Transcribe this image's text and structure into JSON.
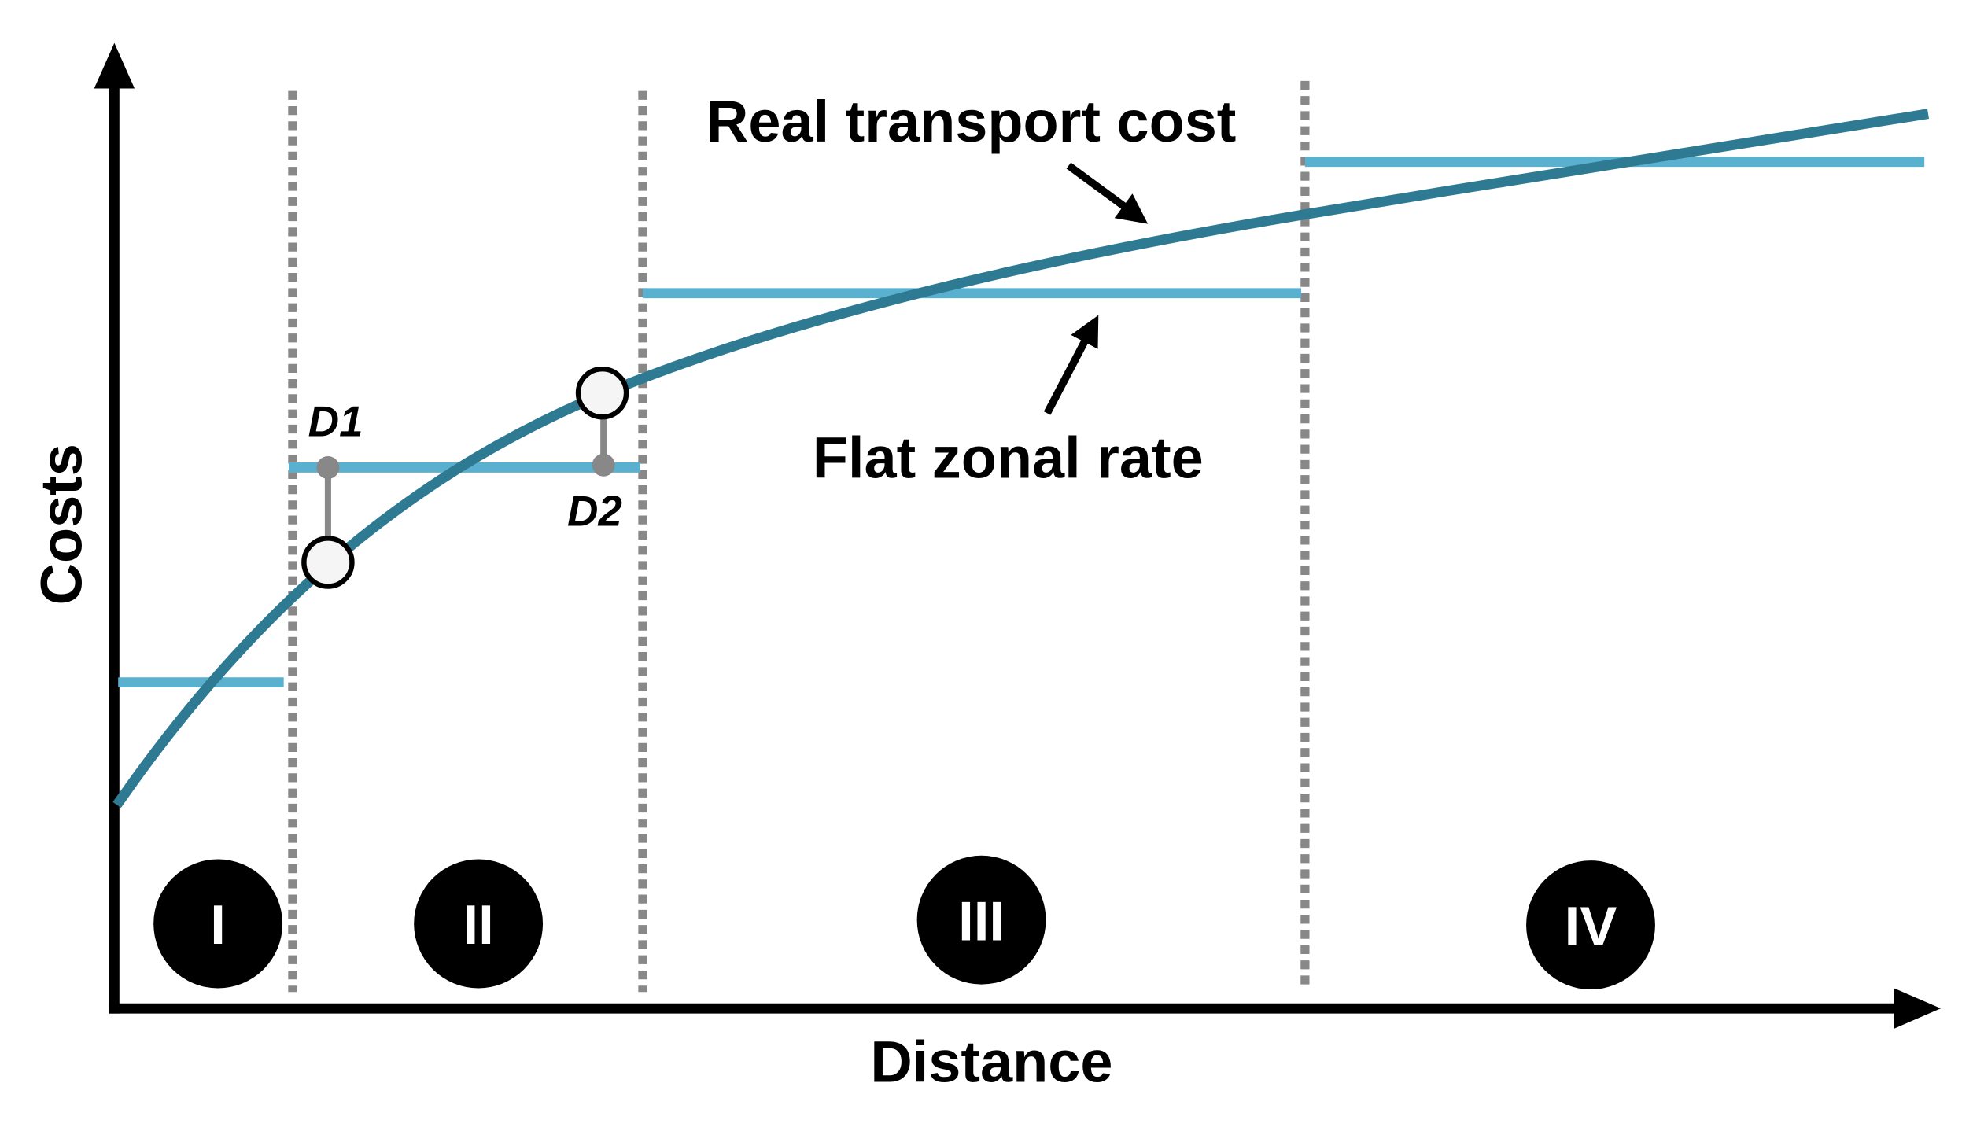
{
  "axes": {
    "y_label": "Costs",
    "x_label": "Distance"
  },
  "annotations": {
    "real_cost": "Real transport cost",
    "flat_rate": "Flat zonal rate",
    "d1": "D1",
    "d2": "D2"
  },
  "zones": [
    "I",
    "II",
    "III",
    "IV"
  ]
}
